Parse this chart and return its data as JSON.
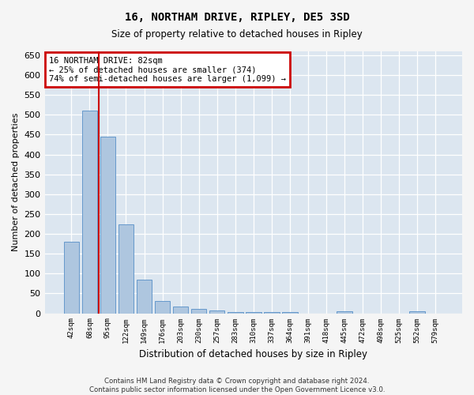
{
  "title": "16, NORTHAM DRIVE, RIPLEY, DE5 3SD",
  "subtitle": "Size of property relative to detached houses in Ripley",
  "xlabel": "Distribution of detached houses by size in Ripley",
  "ylabel": "Number of detached properties",
  "categories": [
    "42sqm",
    "68sqm",
    "95sqm",
    "122sqm",
    "149sqm",
    "176sqm",
    "203sqm",
    "230sqm",
    "257sqm",
    "283sqm",
    "310sqm",
    "337sqm",
    "364sqm",
    "391sqm",
    "418sqm",
    "445sqm",
    "472sqm",
    "498sqm",
    "525sqm",
    "552sqm",
    "579sqm"
  ],
  "values": [
    180,
    510,
    445,
    225,
    84,
    30,
    17,
    11,
    8,
    4,
    3,
    3,
    3,
    0,
    0,
    6,
    0,
    0,
    0,
    5,
    0
  ],
  "bar_color": "#aec6df",
  "bar_edge_color": "#6699cc",
  "annotation_text": "16 NORTHAM DRIVE: 82sqm\n← 25% of detached houses are smaller (374)\n74% of semi-detached houses are larger (1,099) →",
  "annotation_box_color": "#ffffff",
  "annotation_box_edge_color": "#cc0000",
  "vline_color": "#cc0000",
  "vline_x_index": 1.5,
  "background_color": "#dce6f0",
  "grid_color": "#ffffff",
  "footer_text": "Contains HM Land Registry data © Crown copyright and database right 2024.\nContains public sector information licensed under the Open Government Licence v3.0.",
  "fig_bg_color": "#f5f5f5",
  "ylim": [
    0,
    660
  ],
  "yticks": [
    0,
    50,
    100,
    150,
    200,
    250,
    300,
    350,
    400,
    450,
    500,
    550,
    600,
    650
  ]
}
